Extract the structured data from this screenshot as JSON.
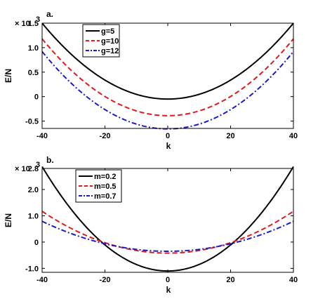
{
  "chart_data": [
    {
      "type": "line",
      "panel_label": "a.",
      "xlabel": "k",
      "ylabel": "E/N",
      "multiplier_text": "× 10",
      "multiplier_exp": "3",
      "xlim": [
        -40,
        40
      ],
      "ylim": [
        -0.65,
        1.5
      ],
      "xticks": [
        -40,
        -20,
        0,
        20,
        40
      ],
      "xtick_labels": [
        "-40",
        "-20",
        "0",
        "20",
        "40"
      ],
      "yticks": [
        1.5,
        1.0,
        0.5,
        0,
        -0.5
      ],
      "ytick_labels": [
        "1.5",
        "1.0",
        "0.5",
        "0",
        "-0.5"
      ],
      "legend_position": "top-left",
      "series": [
        {
          "name": "g=5",
          "color": "#000000",
          "dash": "solid",
          "x": [
            -40,
            -20,
            0,
            20,
            40
          ],
          "y": [
            1.5,
            0.34,
            -0.05,
            0.34,
            1.5
          ]
        },
        {
          "name": "g=10",
          "color": "#e0191b",
          "dash": "dashed",
          "x": [
            -40,
            -20,
            0,
            20,
            40
          ],
          "y": [
            1.18,
            0.0,
            -0.39,
            0.0,
            1.18
          ]
        },
        {
          "name": "g=12",
          "color": "#1a1ad0",
          "dash": "dashdot",
          "x": [
            -40,
            -20,
            0,
            20,
            40
          ],
          "y": [
            0.92,
            -0.27,
            -0.66,
            -0.27,
            0.92
          ]
        }
      ]
    },
    {
      "type": "line",
      "panel_label": "b.",
      "xlabel": "k",
      "ylabel": "E/N",
      "multiplier_text": "× 10",
      "multiplier_exp": "3",
      "xlim": [
        -40,
        40
      ],
      "ylim": [
        -1.15,
        2.8
      ],
      "xticks": [
        -40,
        -20,
        0,
        20,
        40
      ],
      "xtick_labels": [
        "-40",
        "-20",
        "0",
        "20",
        "40"
      ],
      "yticks": [
        2.8,
        2.0,
        1.0,
        0,
        -1.0
      ],
      "ytick_labels": [
        "2.8",
        "2.0",
        "1.0",
        "0",
        "-1.0"
      ],
      "legend_position": "top-left",
      "series": [
        {
          "name": "m=0.2",
          "color": "#000000",
          "dash": "solid",
          "x": [
            -40,
            -20,
            0,
            20,
            40
          ],
          "y": [
            2.87,
            0.12,
            -1.1,
            0.12,
            2.87
          ]
        },
        {
          "name": "m=0.5",
          "color": "#e0191b",
          "dash": "dashed",
          "x": [
            -40,
            -20,
            0,
            20,
            40
          ],
          "y": [
            1.17,
            0.05,
            -0.42,
            0.05,
            1.17
          ]
        },
        {
          "name": "m=0.7",
          "color": "#1a1ad0",
          "dash": "dashdot",
          "x": [
            -40,
            -20,
            0,
            20,
            40
          ],
          "y": [
            0.79,
            -0.02,
            -0.35,
            -0.02,
            0.79
          ]
        }
      ]
    }
  ]
}
